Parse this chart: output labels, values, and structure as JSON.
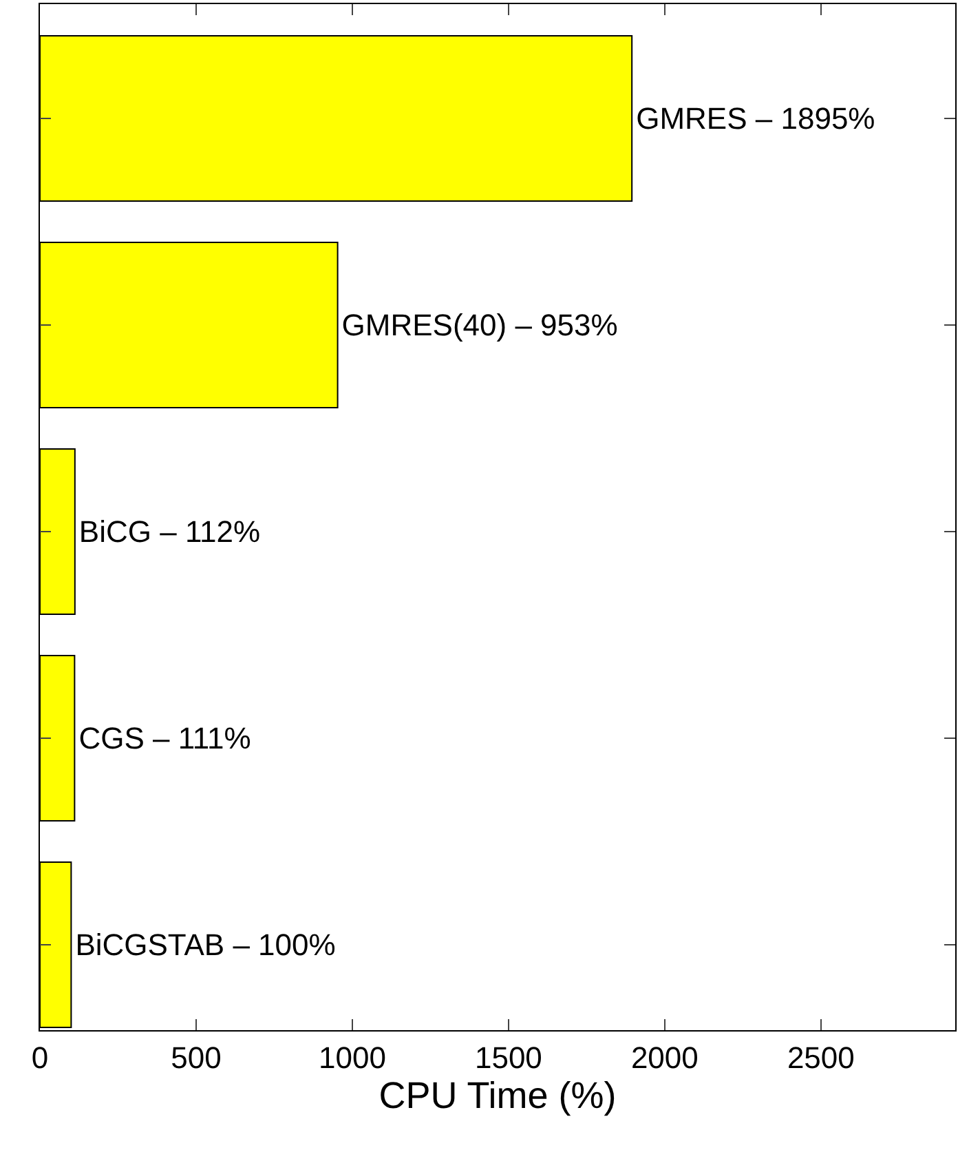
{
  "chart_data": {
    "type": "bar",
    "orientation": "horizontal",
    "xlabel": "CPU Time (%)",
    "categories": [
      "GMRES –",
      "GMRES(40) –",
      "BiCG –",
      "CGS –",
      "BiCGSTAB –"
    ],
    "values": [
      1895,
      953,
      112,
      111,
      100
    ],
    "value_labels": [
      "1895%",
      "953%",
      "112%",
      "111%",
      "100%"
    ],
    "color": "#ffff00",
    "xlim": [
      0,
      2930
    ],
    "xticks": [
      0,
      500,
      1000,
      1500,
      2000,
      2500
    ],
    "tick_labels": "x",
    "grid": false,
    "legend": false
  }
}
